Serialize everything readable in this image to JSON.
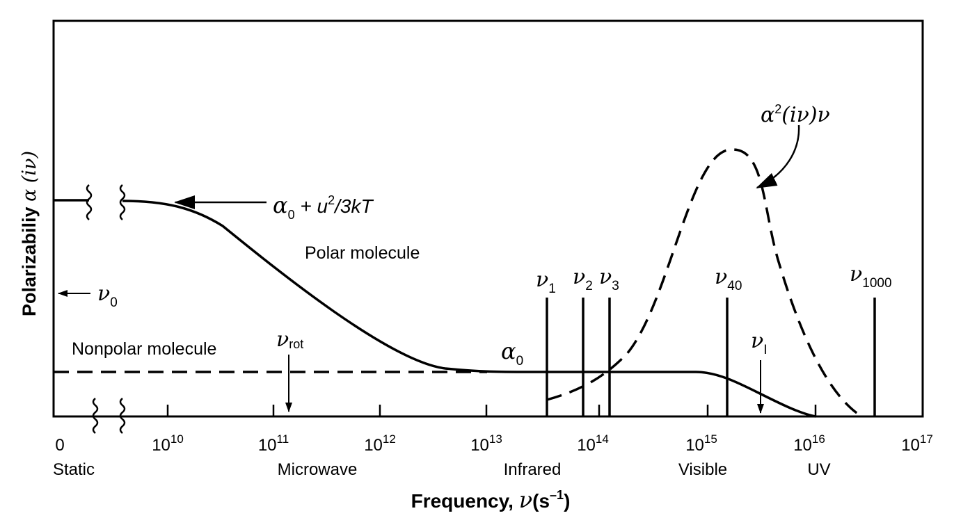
{
  "diagram": {
    "y_axis_label": "Polarizabiliy",
    "y_axis_symbol": "α (iν)",
    "x_axis_label": "Frequency,",
    "x_axis_symbol": "ν",
    "x_axis_unit_open": "(s",
    "x_axis_unit_exp": "–1",
    "x_axis_unit_close": ")",
    "tick_labels": [
      {
        "base": "0",
        "exp": ""
      },
      {
        "base": "10",
        "exp": "10"
      },
      {
        "base": "10",
        "exp": "11"
      },
      {
        "base": "10",
        "exp": "12"
      },
      {
        "base": "10",
        "exp": "13"
      },
      {
        "base": "10",
        "exp": "14"
      },
      {
        "base": "10",
        "exp": "15"
      },
      {
        "base": "10",
        "exp": "16"
      },
      {
        "base": "10",
        "exp": "17"
      }
    ],
    "regions": [
      "Static",
      "Microwave",
      "Infrared",
      "Visible",
      "UV"
    ],
    "labels": {
      "polar_molecule": "Polar molecule",
      "nonpolar_molecule": "Nonpolar molecule",
      "static_formula_sym": "α",
      "static_formula_sub": "0",
      "static_formula_rest": " + u",
      "static_formula_sup": "2",
      "static_formula_tail": "/3kT",
      "alpha0_sym": "α",
      "alpha0_sub": "0",
      "dashed_formula_a": "α",
      "dashed_formula_sup": "2",
      "dashed_formula_rest": "(iν)ν",
      "nu0_sym": "ν",
      "nu0_sub": "0",
      "nurot_sym": "ν",
      "nurot_sub": "rot",
      "nuI_sym": "ν",
      "nuI_sub": "I"
    },
    "frequency_lines": [
      {
        "sym": "ν",
        "sub": "1"
      },
      {
        "sym": "ν",
        "sub": "2"
      },
      {
        "sym": "ν",
        "sub": "3"
      },
      {
        "sym": "ν",
        "sub": "40"
      },
      {
        "sym": "ν",
        "sub": "1000"
      }
    ]
  }
}
